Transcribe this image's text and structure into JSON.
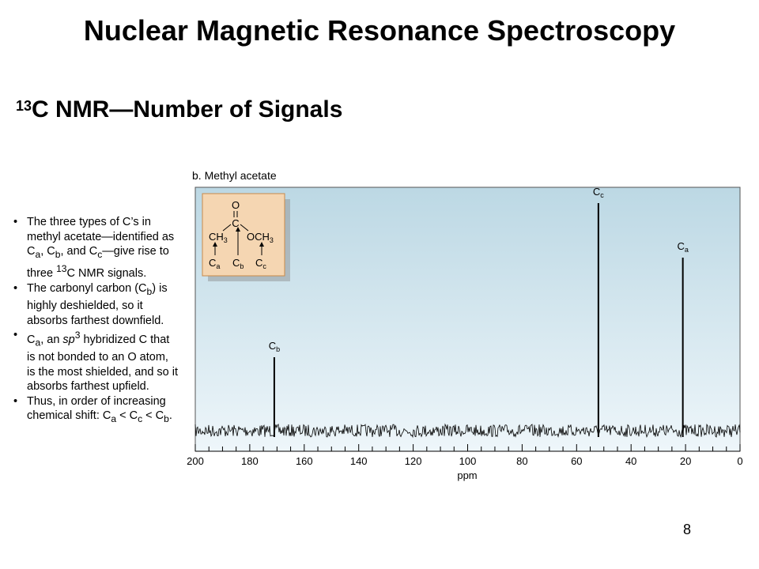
{
  "slide": {
    "title": "Nuclear Magnetic Resonance Spectroscopy",
    "subtitle_sup": "13",
    "subtitle_main": "C NMR—Number of Signals",
    "page_number": "8"
  },
  "bullets": [
    "The three types of C’s in methyl acetate—identified as Ca, Cb, and Cc—give rise to three 13C NMR signals.",
    "The carbonyl carbon (Cb) is highly deshielded, so it absorbs farthest downfield.",
    "Ca, an sp3 hybridized C that is not bonded to an O atom, is the most shielded, and so it absorbs farthest upfield.",
    "Thus, in order of increasing chemical shift: Ca < Cc < Cb."
  ],
  "structure": {
    "o_label": "O",
    "c_label": "C",
    "left_group": "CH3",
    "right_group": "OCH3",
    "label_a": "Ca",
    "label_b": "Cb",
    "label_c": "Cc"
  },
  "colors": {
    "plot_bg_top": "#bcd8e4",
    "plot_bg_bottom": "#eef6fa",
    "inset_bg": "#f5d6b2",
    "inset_border": "#c98a4a"
  },
  "chart_data": {
    "type": "line",
    "title": "b. Methyl acetate",
    "xlabel": "ppm",
    "ylabel": "",
    "xlim": [
      200,
      0
    ],
    "x_ticks": [
      200,
      180,
      160,
      140,
      120,
      100,
      80,
      60,
      40,
      20,
      0
    ],
    "peaks": [
      {
        "label": "Cb",
        "ppm": 171,
        "intensity": 0.31
      },
      {
        "label": "Cc",
        "ppm": 52,
        "intensity": 0.96
      },
      {
        "label": "Ca",
        "ppm": 21,
        "intensity": 0.73
      }
    ]
  }
}
